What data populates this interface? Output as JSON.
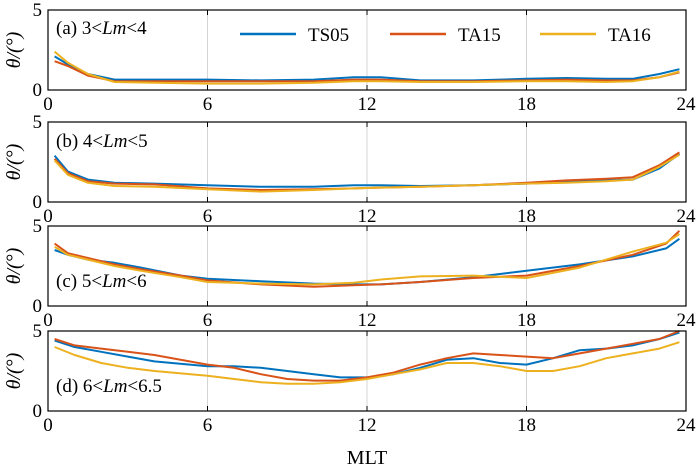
{
  "chart_data": {
    "type": "line",
    "xlabel": "MLT",
    "xlim": [
      0,
      24
    ],
    "xticks": [
      0,
      6,
      12,
      18,
      24
    ],
    "grid": "vertical",
    "legend": {
      "placement": "top-right of first panel",
      "entries": [
        "TS05",
        "TA15",
        "TA16"
      ]
    },
    "colors": {
      "TS05": "#0072BD",
      "TA15": "#D95319",
      "TA16": "#EDB120"
    },
    "panels": [
      {
        "label": "(a) 3<Lm<4",
        "label_parts": [
          "(a) 3<",
          "Lm",
          "<4"
        ],
        "ylabel": "θ/(°)",
        "ylim": [
          0,
          5
        ],
        "yticks": [
          0,
          5
        ],
        "x": [
          0.25,
          0.75,
          1.5,
          2.5,
          4,
          6,
          8,
          10,
          11.5,
          12.5,
          14,
          16,
          18,
          19.5,
          21,
          22,
          23,
          23.75
        ],
        "series": [
          {
            "name": "TS05",
            "values": [
              2.1,
              1.6,
              1.0,
              0.65,
              0.65,
              0.65,
              0.6,
              0.65,
              0.8,
              0.8,
              0.6,
              0.6,
              0.7,
              0.75,
              0.7,
              0.7,
              1.0,
              1.3
            ]
          },
          {
            "name": "TA15",
            "values": [
              1.8,
              1.5,
              0.9,
              0.55,
              0.55,
              0.55,
              0.55,
              0.55,
              0.65,
              0.65,
              0.55,
              0.55,
              0.6,
              0.65,
              0.6,
              0.6,
              0.8,
              1.1
            ]
          },
          {
            "name": "TA16",
            "values": [
              2.4,
              1.7,
              1.0,
              0.5,
              0.45,
              0.4,
              0.4,
              0.45,
              0.55,
              0.55,
              0.5,
              0.5,
              0.55,
              0.55,
              0.5,
              0.55,
              0.8,
              1.15
            ]
          }
        ]
      },
      {
        "label": "(b) 4<Lm<5",
        "label_parts": [
          "(b) 4<",
          "Lm",
          "<5"
        ],
        "ylabel": "θ/(°)",
        "ylim": [
          0,
          5
        ],
        "yticks": [
          0,
          5
        ],
        "x": [
          0.25,
          0.75,
          1.5,
          2.5,
          4,
          6,
          8,
          10,
          11.5,
          12.5,
          14,
          16,
          18,
          19.5,
          21,
          22,
          23,
          23.75
        ],
        "series": [
          {
            "name": "TS05",
            "values": [
              2.9,
              1.9,
              1.4,
              1.2,
              1.15,
              1.05,
              0.95,
              0.95,
              1.05,
              1.05,
              1.0,
              1.05,
              1.15,
              1.25,
              1.35,
              1.4,
              2.1,
              3.0
            ]
          },
          {
            "name": "TA15",
            "values": [
              2.7,
              1.8,
              1.3,
              1.15,
              1.1,
              0.85,
              0.75,
              0.8,
              0.85,
              0.9,
              0.95,
              1.05,
              1.2,
              1.35,
              1.45,
              1.55,
              2.3,
              3.1
            ]
          },
          {
            "name": "TA16",
            "values": [
              2.6,
              1.7,
              1.2,
              1.0,
              0.95,
              0.8,
              0.65,
              0.75,
              0.85,
              0.9,
              0.95,
              1.05,
              1.15,
              1.2,
              1.3,
              1.4,
              2.2,
              2.95
            ]
          }
        ]
      },
      {
        "label": "(c) 5<Lm<6",
        "label_parts": [
          "(c) 5<",
          "Lm",
          "<6"
        ],
        "ylabel": "θ/(°)",
        "ylim": [
          0,
          5
        ],
        "yticks": [
          0,
          5
        ],
        "x": [
          0.25,
          0.75,
          1.5,
          2.5,
          3.5,
          5,
          6,
          8,
          10,
          11.5,
          12.5,
          14,
          16,
          18,
          20,
          22,
          23.25,
          23.75
        ],
        "series": [
          {
            "name": "TS05",
            "values": [
              3.5,
              3.2,
              2.9,
              2.7,
              2.4,
              1.9,
              1.7,
              1.55,
              1.4,
              1.35,
              1.35,
              1.5,
              1.8,
              2.2,
              2.6,
              3.1,
              3.6,
              4.2
            ]
          },
          {
            "name": "TA15",
            "values": [
              3.9,
              3.3,
              3.0,
              2.6,
              2.3,
              1.9,
              1.6,
              1.35,
              1.2,
              1.3,
              1.35,
              1.5,
              1.75,
              1.9,
              2.5,
              3.2,
              3.9,
              4.7
            ]
          },
          {
            "name": "TA16",
            "values": [
              3.7,
              3.2,
              2.9,
              2.5,
              2.2,
              1.8,
              1.5,
              1.4,
              1.35,
              1.45,
              1.65,
              1.85,
              1.9,
              1.75,
              2.4,
              3.4,
              3.95,
              4.5
            ]
          }
        ]
      },
      {
        "label": "(d) 6<Lm<6.5",
        "label_parts": [
          "(d) 6<",
          "Lm",
          "<6.5"
        ],
        "ylabel": "θ/(°)",
        "ylim": [
          0,
          5
        ],
        "yticks": [
          0,
          5
        ],
        "x": [
          0.25,
          1,
          2,
          3,
          4,
          6,
          7,
          8,
          9,
          10,
          11,
          12,
          13,
          14,
          15,
          16,
          17,
          18,
          19,
          20,
          21,
          22,
          23,
          23.75
        ],
        "series": [
          {
            "name": "TS05",
            "values": [
              4.4,
              4.0,
              3.7,
              3.4,
              3.1,
              2.8,
              2.8,
              2.7,
              2.5,
              2.3,
              2.1,
              2.1,
              2.3,
              2.7,
              3.2,
              3.3,
              3.0,
              2.9,
              3.3,
              3.8,
              3.9,
              4.1,
              4.5,
              4.9
            ]
          },
          {
            "name": "TA15",
            "values": [
              4.5,
              4.1,
              3.9,
              3.7,
              3.5,
              2.9,
              2.7,
              2.3,
              2.0,
              1.9,
              1.9,
              2.1,
              2.4,
              2.9,
              3.3,
              3.6,
              3.5,
              3.4,
              3.3,
              3.6,
              3.9,
              4.2,
              4.5,
              5.0
            ]
          },
          {
            "name": "TA16",
            "values": [
              4.0,
              3.5,
              3.0,
              2.7,
              2.5,
              2.2,
              2.0,
              1.8,
              1.7,
              1.7,
              1.8,
              2.0,
              2.3,
              2.6,
              3.0,
              3.0,
              2.8,
              2.5,
              2.5,
              2.8,
              3.3,
              3.6,
              3.9,
              4.3
            ]
          }
        ]
      }
    ]
  }
}
